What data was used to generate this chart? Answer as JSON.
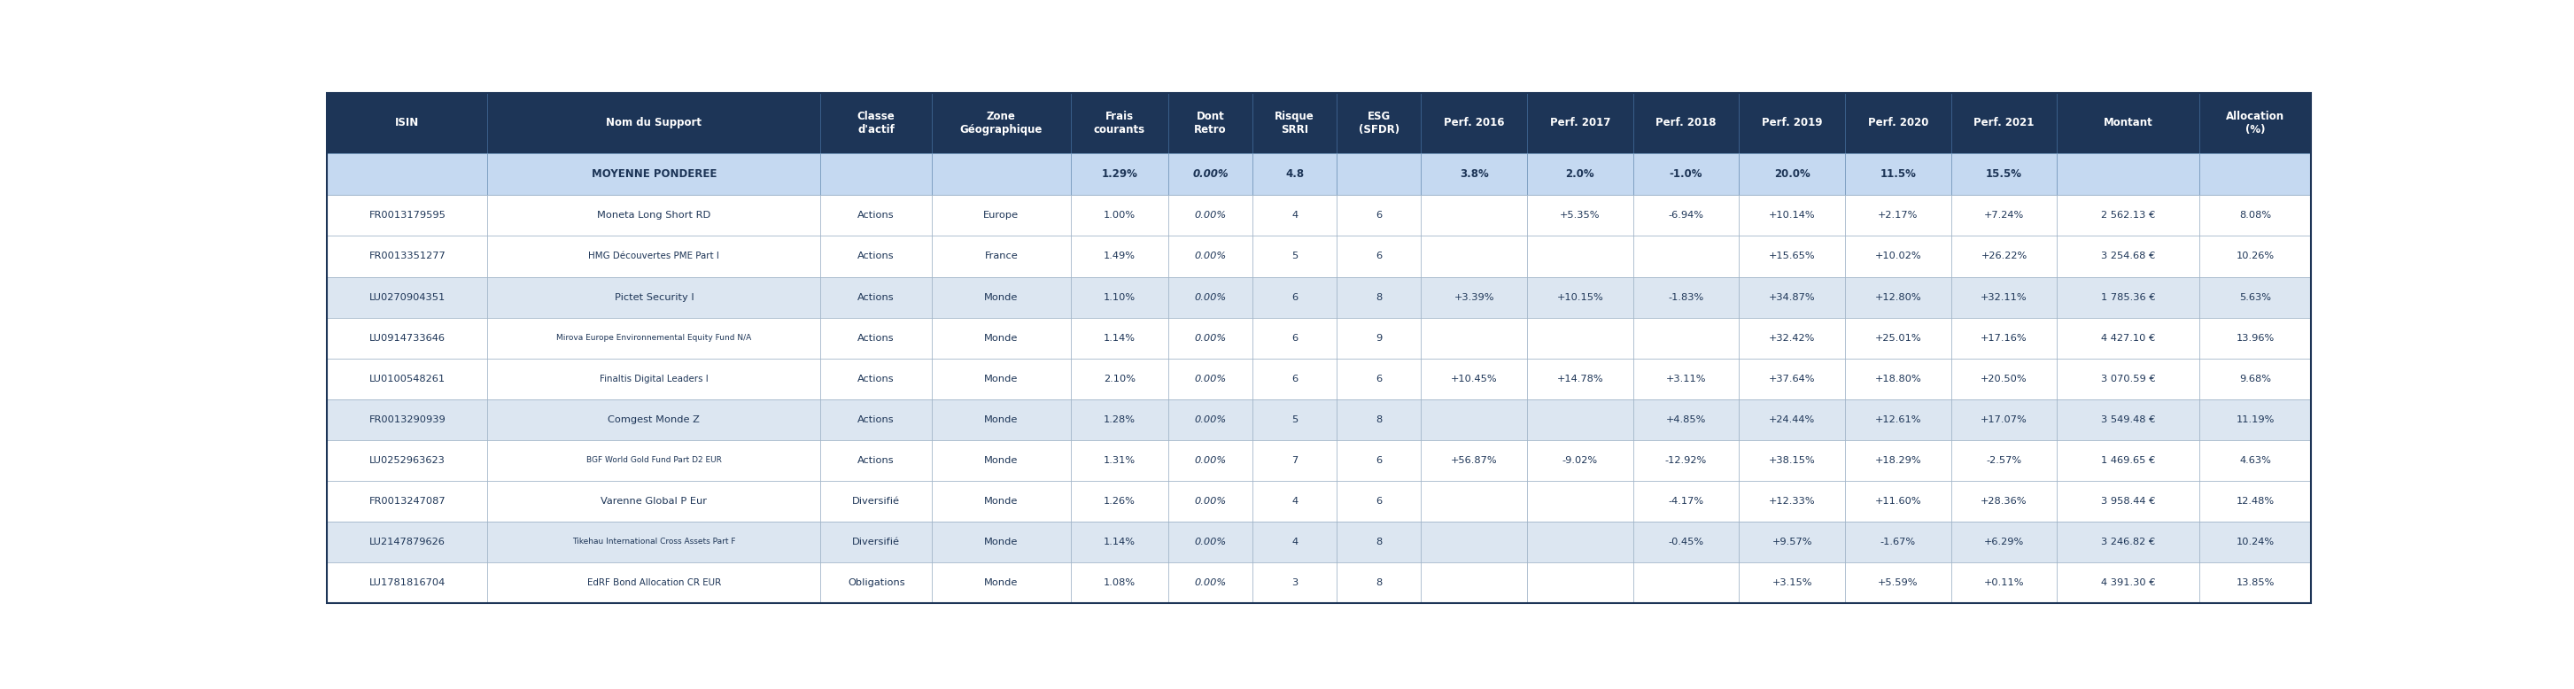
{
  "header_bg": "#1d3557",
  "header_text_color": "#ffffff",
  "moyenne_bg": "#c5d9f1",
  "moyenne_text_color": "#1d3557",
  "row_bg_white": "#ffffff",
  "row_bg_light": "#dce6f1",
  "row_text_color": "#1d3557",
  "border_color": "#a0b4c8",
  "outer_border_color": "#1d3557",
  "col_headers": [
    "ISIN",
    "Nom du Support",
    "Classe\nd'actif",
    "Zone\nGéographique",
    "Frais\ncourants",
    "Dont\nRetro",
    "Risque\nSRRI",
    "ESG\n(SFDR)",
    "Perf. 2016",
    "Perf. 2017",
    "Perf. 2018",
    "Perf. 2019",
    "Perf. 2020",
    "Perf. 2021",
    "Montant",
    "Allocation\n(%)"
  ],
  "col_widths_rel": [
    1.18,
    2.45,
    0.82,
    1.02,
    0.72,
    0.62,
    0.62,
    0.62,
    0.78,
    0.78,
    0.78,
    0.78,
    0.78,
    0.78,
    1.05,
    0.82
  ],
  "moyenne_row": [
    "",
    "MOYENNE PONDEREE",
    "",
    "",
    "1.29%",
    "0.00%",
    "4.8",
    "",
    "3.8%",
    "2.0%",
    "-1.0%",
    "20.0%",
    "11.5%",
    "15.5%",
    "",
    ""
  ],
  "rows": [
    [
      "FR0013179595",
      "Moneta Long Short RD",
      "Actions",
      "Europe",
      "1.00%",
      "0.00%",
      "4",
      "6",
      "",
      "+5.35%",
      "-6.94%",
      "+10.14%",
      "+2.17%",
      "+7.24%",
      "2 562.13 €",
      "8.08%"
    ],
    [
      "FR0013351277",
      "HMG Découvertes PME Part I",
      "Actions",
      "France",
      "1.49%",
      "0.00%",
      "5",
      "6",
      "",
      "",
      "",
      "+15.65%",
      "+10.02%",
      "+26.22%",
      "3 254.68 €",
      "10.26%"
    ],
    [
      "LU0270904351",
      "Pictet Security I",
      "Actions",
      "Monde",
      "1.10%",
      "0.00%",
      "6",
      "8",
      "+3.39%",
      "+10.15%",
      "-1.83%",
      "+34.87%",
      "+12.80%",
      "+32.11%",
      "1 785.36 €",
      "5.63%"
    ],
    [
      "LU0914733646",
      "Mirova Europe Environnemental Equity Fund N/A",
      "Actions",
      "Monde",
      "1.14%",
      "0.00%",
      "6",
      "9",
      "",
      "",
      "",
      "+32.42%",
      "+25.01%",
      "+17.16%",
      "4 427.10 €",
      "13.96%"
    ],
    [
      "LU0100548261",
      "Finaltis Digital Leaders I",
      "Actions",
      "Monde",
      "2.10%",
      "0.00%",
      "6",
      "6",
      "+10.45%",
      "+14.78%",
      "+3.11%",
      "+37.64%",
      "+18.80%",
      "+20.50%",
      "3 070.59 €",
      "9.68%"
    ],
    [
      "FR0013290939",
      "Comgest Monde Z",
      "Actions",
      "Monde",
      "1.28%",
      "0.00%",
      "5",
      "8",
      "",
      "",
      "+4.85%",
      "+24.44%",
      "+12.61%",
      "+17.07%",
      "3 549.48 €",
      "11.19%"
    ],
    [
      "LU0252963623",
      "BGF World Gold Fund Part D2 EUR",
      "Actions",
      "Monde",
      "1.31%",
      "0.00%",
      "7",
      "6",
      "+56.87%",
      "-9.02%",
      "-12.92%",
      "+38.15%",
      "+18.29%",
      "-2.57%",
      "1 469.65 €",
      "4.63%"
    ],
    [
      "FR0013247087",
      "Varenne Global P Eur",
      "Diversifié",
      "Monde",
      "1.26%",
      "0.00%",
      "4",
      "6",
      "",
      "",
      "-4.17%",
      "+12.33%",
      "+11.60%",
      "+28.36%",
      "3 958.44 €",
      "12.48%"
    ],
    [
      "LU2147879626",
      "Tikehau International Cross Assets Part F",
      "Diversifié",
      "Monde",
      "1.14%",
      "0.00%",
      "4",
      "8",
      "",
      "",
      "-0.45%",
      "+9.57%",
      "-1.67%",
      "+6.29%",
      "3 246.82 €",
      "10.24%"
    ],
    [
      "LU1781816704",
      "EdRF Bond Allocation CR EUR",
      "Obligations",
      "Monde",
      "1.08%",
      "0.00%",
      "3",
      "8",
      "",
      "",
      "",
      "+3.15%",
      "+5.59%",
      "+0.11%",
      "4 391.30 €",
      "13.85%"
    ]
  ],
  "header_fontsize": 8.5,
  "data_fontsize": 8.2,
  "moyenne_fontsize": 8.5
}
